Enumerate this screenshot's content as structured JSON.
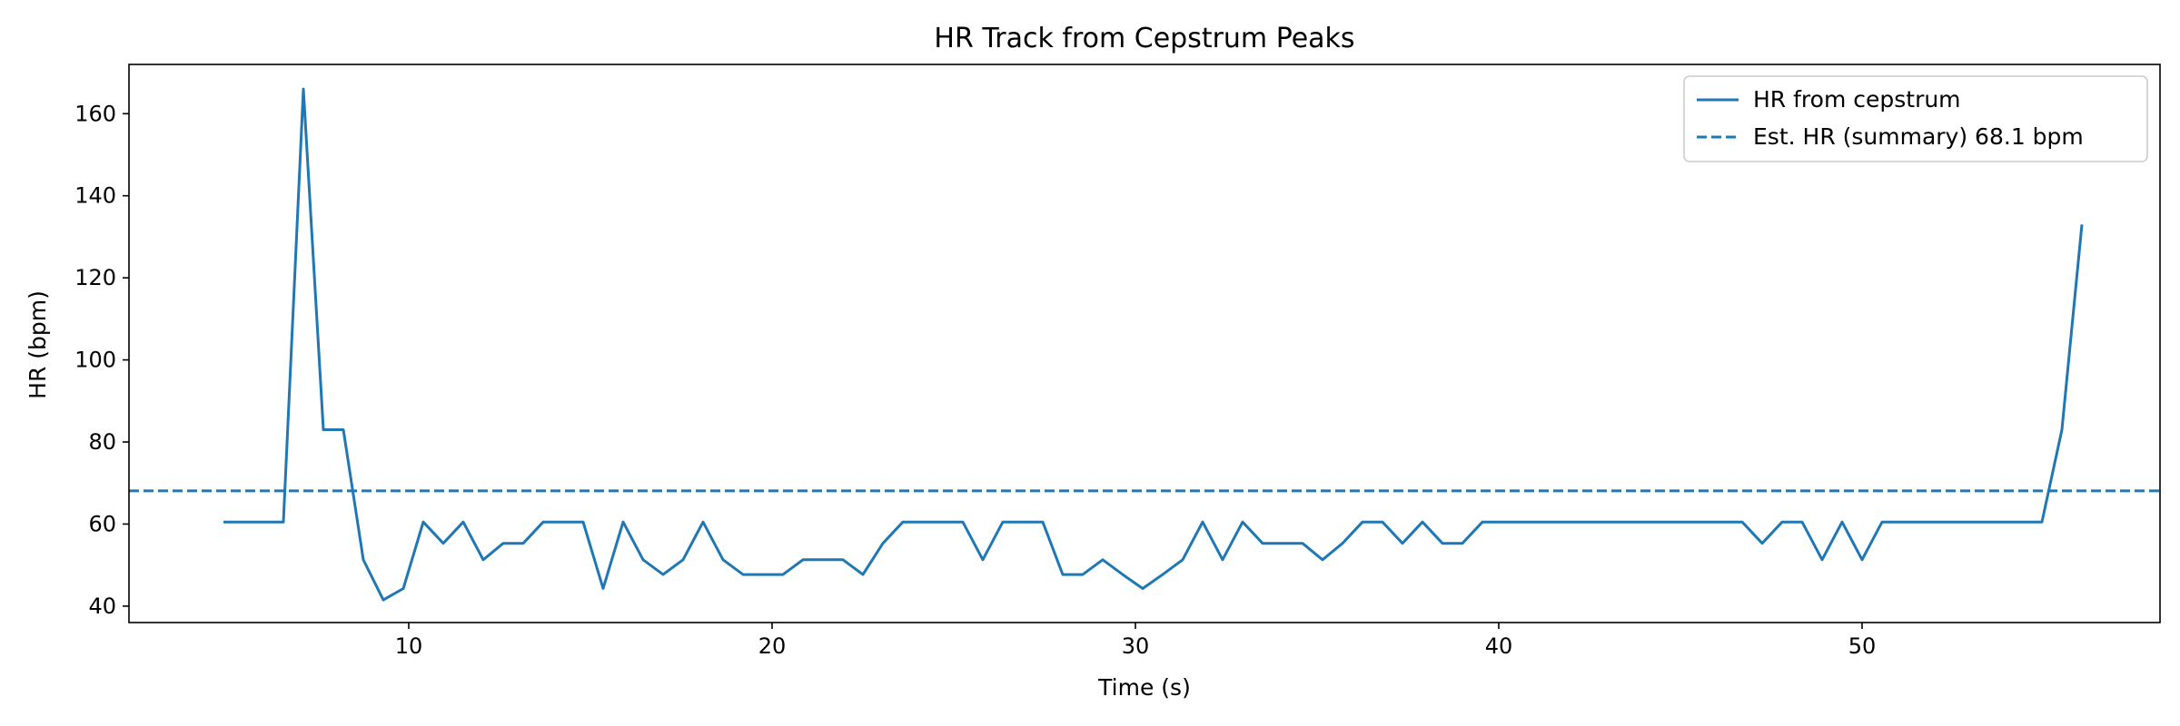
{
  "chart_data": {
    "type": "line",
    "title": "HR Track from Cepstrum Peaks",
    "xlabel": "Time (s)",
    "ylabel": "HR (bpm)",
    "xlim": [
      2.3,
      58.2
    ],
    "ylim": [
      36,
      172
    ],
    "xticks": [
      10,
      20,
      30,
      40,
      50
    ],
    "yticks": [
      40,
      60,
      80,
      100,
      120,
      140,
      160
    ],
    "grid": false,
    "legend_position": "top-right",
    "color": "#1f77b4",
    "series": [
      {
        "name": "HR from cepstrum",
        "style": "solid",
        "x": [
          4.9,
          5.45,
          6.0,
          6.55,
          7.1,
          7.65,
          8.2,
          8.75,
          9.3,
          9.85,
          10.4,
          10.95,
          11.5,
          12.05,
          12.6,
          13.15,
          13.7,
          14.25,
          14.8,
          15.35,
          15.9,
          16.45,
          17.0,
          17.55,
          18.1,
          18.65,
          19.2,
          19.75,
          20.3,
          20.85,
          21.4,
          21.95,
          22.5,
          23.05,
          23.6,
          24.15,
          24.7,
          25.25,
          25.8,
          26.35,
          26.9,
          27.45,
          28.0,
          28.55,
          29.1,
          29.65,
          30.2,
          30.75,
          31.3,
          31.85,
          32.4,
          32.95,
          33.5,
          34.05,
          34.6,
          35.15,
          35.7,
          36.25,
          36.8,
          37.35,
          37.9,
          38.45,
          39.0,
          39.55,
          40.1,
          40.65,
          41.2,
          41.75,
          42.3,
          42.85,
          43.4,
          43.95,
          44.5,
          45.05,
          45.6,
          46.15,
          46.7,
          47.25,
          47.8,
          48.35,
          48.9,
          49.45,
          50.0,
          50.55,
          51.1,
          51.65,
          52.2,
          52.75,
          53.3,
          53.85,
          54.4,
          54.95,
          55.5,
          56.05
        ],
        "values": [
          60.5,
          60.5,
          60.5,
          60.5,
          166.0,
          83.0,
          83.0,
          51.3,
          41.5,
          44.3,
          60.5,
          55.3,
          60.5,
          51.3,
          55.3,
          55.3,
          60.5,
          60.5,
          60.5,
          44.3,
          60.5,
          51.3,
          47.7,
          51.3,
          60.5,
          51.3,
          47.7,
          47.7,
          47.7,
          51.3,
          51.3,
          51.3,
          47.7,
          55.3,
          60.5,
          60.5,
          60.5,
          60.5,
          51.3,
          60.5,
          60.5,
          60.5,
          47.7,
          47.7,
          51.3,
          47.7,
          44.3,
          47.7,
          51.3,
          60.5,
          51.3,
          60.5,
          55.3,
          55.3,
          55.3,
          51.3,
          55.3,
          60.5,
          60.5,
          55.3,
          60.5,
          55.3,
          55.3,
          60.5,
          60.5,
          60.5,
          60.5,
          60.5,
          60.5,
          60.5,
          60.5,
          60.5,
          60.5,
          60.5,
          60.5,
          60.5,
          60.5,
          55.3,
          60.5,
          60.5,
          51.3,
          60.5,
          51.3,
          60.5,
          60.5,
          60.5,
          60.5,
          60.5,
          60.5,
          60.5,
          60.5,
          60.5,
          83.0,
          133.0
        ]
      },
      {
        "name": "Est. HR (summary) 68.1 bpm",
        "style": "dashed",
        "hline": 68.1
      }
    ]
  }
}
